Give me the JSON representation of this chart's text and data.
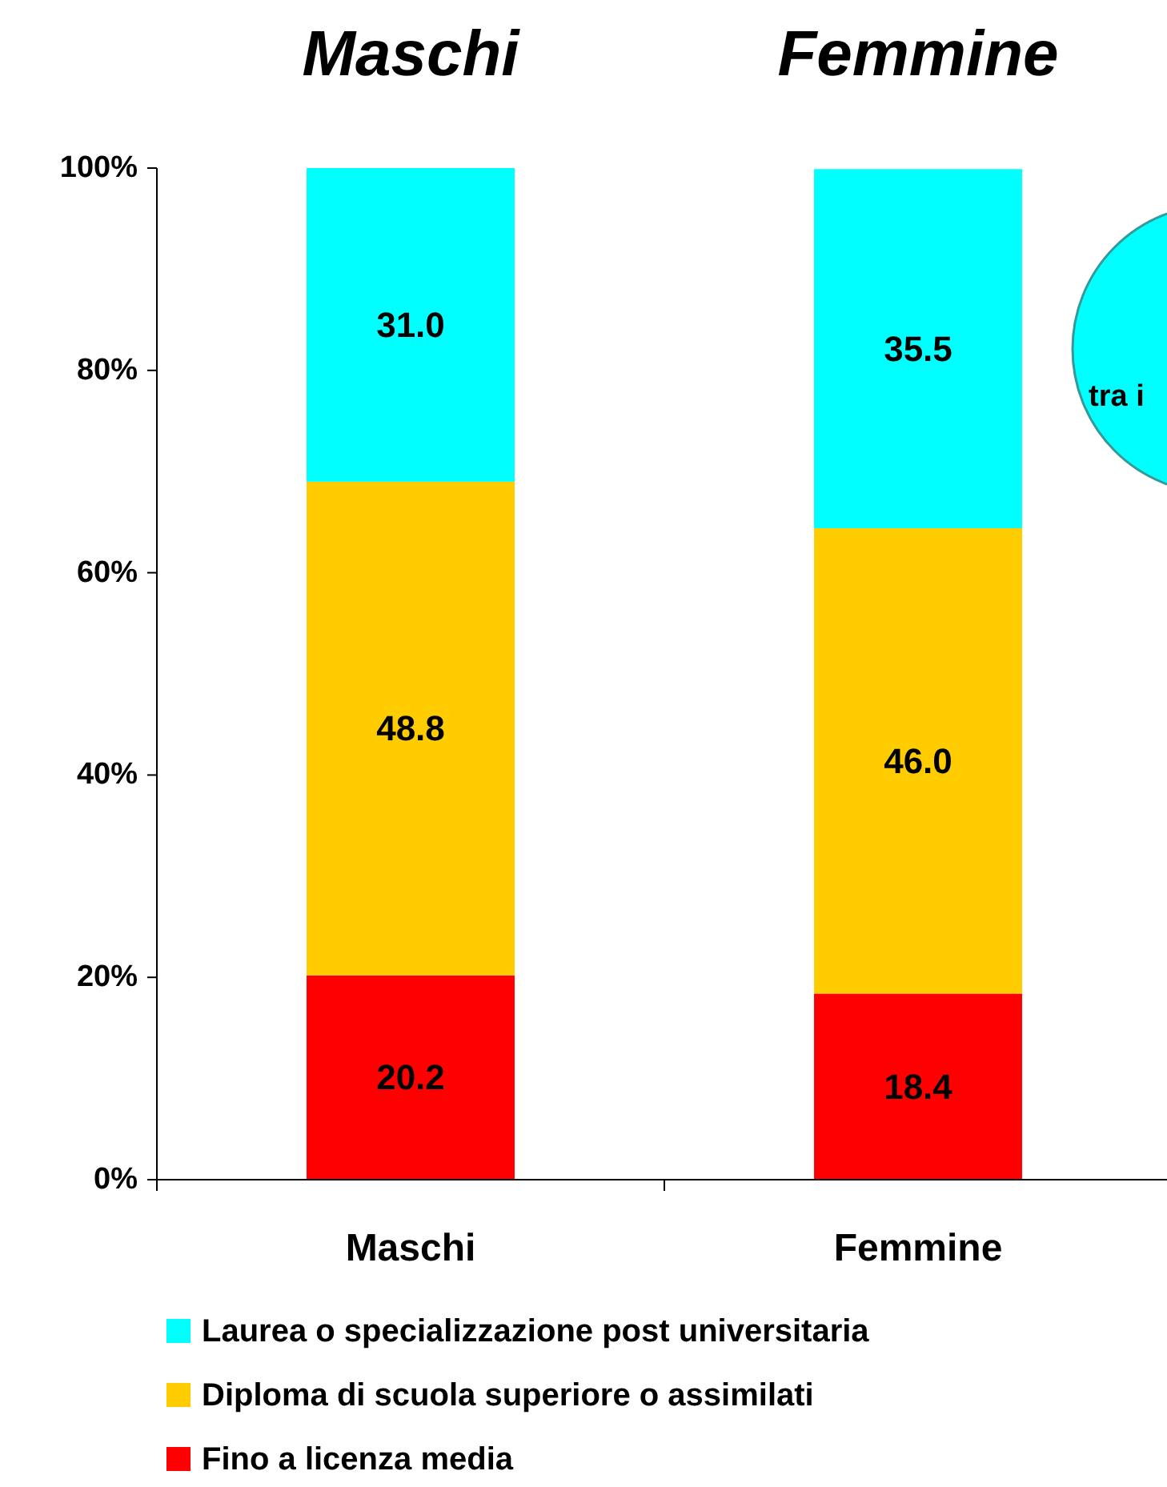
{
  "chart_data": {
    "type": "bar",
    "stacked": true,
    "categories": [
      "Maschi",
      "Femmine"
    ],
    "series": [
      {
        "name": "Fino a licenza media",
        "color": "#ff0000",
        "values": [
          20.2,
          18.4
        ],
        "value_labels": [
          "20.2",
          "18.4"
        ]
      },
      {
        "name": "Diploma di scuola superiore o assimilati",
        "color": "#ffcc00",
        "values": [
          48.8,
          46.0
        ],
        "value_labels": [
          "48.8",
          "46.0"
        ]
      },
      {
        "name": "Laurea o specializzazione post universitaria",
        "color": "#00ffff",
        "values": [
          31.0,
          35.5
        ],
        "value_labels": [
          "31.0",
          "35.5"
        ]
      }
    ],
    "ylim": [
      0,
      100
    ],
    "yticks": [
      {
        "value": 0,
        "label": "0%"
      },
      {
        "value": 20,
        "label": "20%"
      },
      {
        "value": 40,
        "label": "40%"
      },
      {
        "value": 60,
        "label": "60%"
      },
      {
        "value": 80,
        "label": "80%"
      },
      {
        "value": 100,
        "label": "100%"
      }
    ],
    "annotations": [
      "Maschi",
      "Femmine",
      "tra i"
    ],
    "legend": "bottom",
    "grid": false
  }
}
